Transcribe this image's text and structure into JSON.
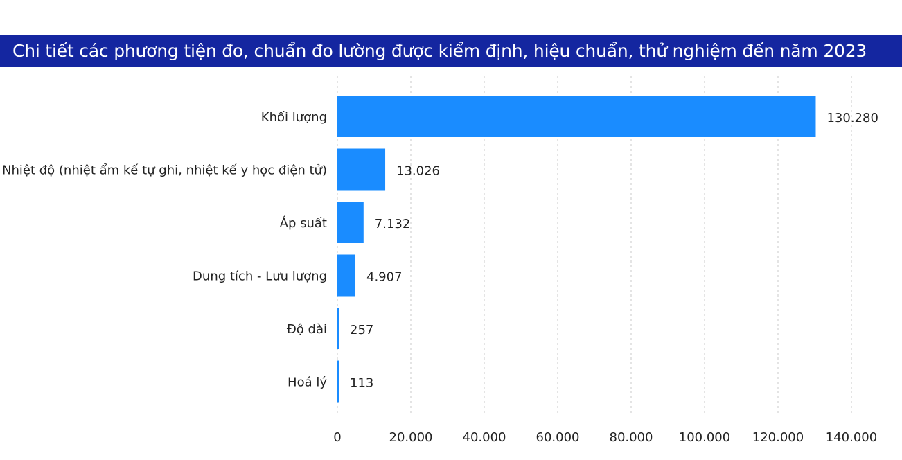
{
  "chart_data": {
    "type": "bar",
    "orientation": "horizontal",
    "title": "Chi tiết các phương tiện đo, chuẩn đo lường được kiểm định, hiệu chuẩn, thử nghiệm đến năm 2023",
    "categories": [
      "Khối lượng",
      "Nhiệt độ (nhiệt ẩm kế tự ghi, nhiệt kế y học điện tử)",
      "Áp suất",
      "Dung tích - Lưu lượng",
      "Độ dài",
      "Hoá lý"
    ],
    "values": [
      130280,
      13026,
      7132,
      4907,
      257,
      113
    ],
    "value_labels": [
      "130.280",
      "13.026",
      "7.132",
      "4.907",
      "257",
      "113"
    ],
    "xlim": [
      0,
      140000
    ],
    "ticks": [
      0,
      20000,
      40000,
      60000,
      80000,
      100000,
      120000,
      140000
    ],
    "tick_labels": [
      "0",
      "20.000",
      "40.000",
      "60.000",
      "80.000",
      "100.000",
      "120.000",
      "140.000"
    ],
    "grid": "vertical-dotted",
    "legend": "none",
    "bar_color": "#1a8cff",
    "title_bg_color": "#1426a0"
  }
}
